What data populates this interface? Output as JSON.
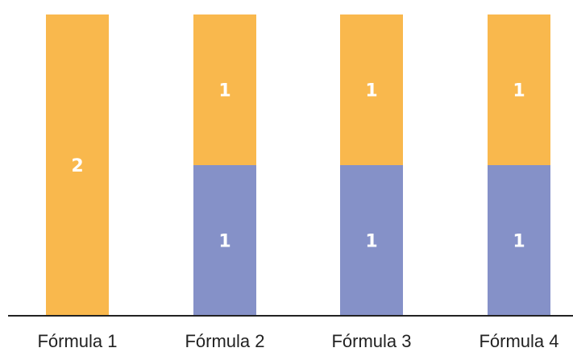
{
  "chart_data": {
    "type": "bar",
    "stacked": true,
    "categories": [
      "Fórmula 1",
      "Fórmula 2",
      "Fórmula 3",
      "Fórmula 4"
    ],
    "series": [
      {
        "values": [
          0,
          1,
          1,
          1
        ],
        "color": "#8591c8"
      },
      {
        "values": [
          2,
          1,
          1,
          1
        ],
        "color": "#f9b84d"
      }
    ],
    "ylim": [
      0,
      2
    ],
    "grid": false,
    "legend": "none",
    "title": "",
    "xlabel": "",
    "ylabel": ""
  }
}
